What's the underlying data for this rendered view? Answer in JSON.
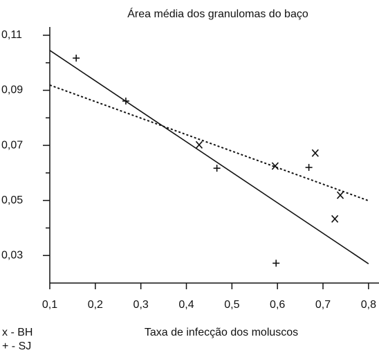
{
  "chart_data": {
    "type": "scatter",
    "title": "Área média dos granulomas do baço",
    "xlabel": "Taxa de infecção dos moluscos",
    "series": [
      {
        "name": "x - BH",
        "marker": "x",
        "color": "#111111",
        "x": [
          0.428,
          0.595,
          0.683,
          0.738,
          0.726
        ],
        "values": [
          0.0702,
          0.0625,
          0.0672,
          0.0519,
          0.0433
        ]
      },
      {
        "name": "+ - SJ",
        "marker": "+",
        "color": "#111111",
        "x": [
          0.158,
          0.267,
          0.467,
          0.597,
          0.669
        ],
        "values": [
          0.1017,
          0.0861,
          0.0617,
          0.0272,
          0.062
        ]
      }
    ],
    "lines": [
      {
        "style": "solid",
        "color": "#111111",
        "x": [
          0.1,
          0.8
        ],
        "values": [
          0.1045,
          0.027
        ]
      },
      {
        "style": "dotted",
        "color": "#111111",
        "x": [
          0.1,
          0.8
        ],
        "values": [
          0.0919,
          0.0499
        ]
      }
    ],
    "xlim": [
      0.1,
      0.823
    ],
    "ylim": [
      0.02,
      0.113
    ],
    "xticks": [
      {
        "value": 0.1,
        "label": "0,1"
      },
      {
        "value": 0.2,
        "label": "0,2"
      },
      {
        "value": 0.3,
        "label": "0,3"
      },
      {
        "value": 0.4,
        "label": "0,4"
      },
      {
        "value": 0.5,
        "label": "0,5"
      },
      {
        "value": 0.6,
        "label": "0,6"
      },
      {
        "value": 0.7,
        "label": "0,7"
      },
      {
        "value": 0.8,
        "label": "0,8"
      }
    ],
    "yticks": [
      {
        "value": 0.03,
        "label": "0,03"
      },
      {
        "value": 0.05,
        "label": "0,05"
      },
      {
        "value": 0.07,
        "label": "0,07"
      },
      {
        "value": 0.09,
        "label": "0,09"
      },
      {
        "value": 0.11,
        "label": "0,11"
      }
    ],
    "yminor_ticks": [
      0.04,
      0.06,
      0.08,
      0.1
    ],
    "grid": false
  }
}
